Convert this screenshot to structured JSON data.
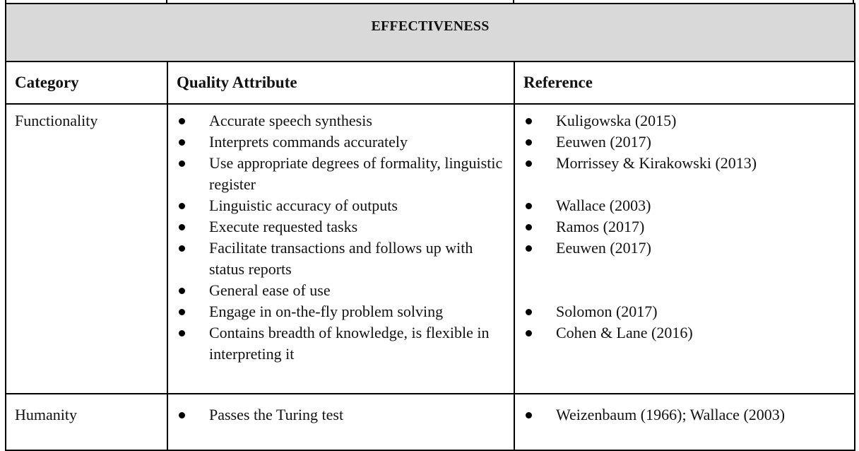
{
  "table": {
    "section_title": "EFFECTIVENESS",
    "headers": {
      "category": "Category",
      "quality_attribute": "Quality Attribute",
      "reference": "Reference"
    },
    "rows": [
      {
        "category": "Functionality",
        "attributes": [
          "Accurate speech synthesis",
          "Interprets commands accurately",
          "Use appropriate degrees of formality, linguistic register",
          "Linguistic accuracy of outputs",
          "Execute requested tasks",
          "Facilitate transactions and follows up with status reports",
          "General ease of use",
          "Engage in on-the-fly problem solving",
          "Contains breadth of knowledge, is flexible in interpreting it"
        ],
        "references": [
          "Kuligowska (2015)",
          "Eeuwen (2017)",
          "Morrissey & Kirakowski (2013)",
          "Wallace (2003)",
          "Ramos (2017)",
          "Eeuwen (2017)",
          "Solomon (2017)",
          "Cohen & Lane (2016)"
        ]
      },
      {
        "category": "Humanity",
        "attributes": [
          "Passes the Turing test"
        ],
        "references": [
          "Weizenbaum (1966); Wallace (2003)"
        ]
      }
    ]
  }
}
